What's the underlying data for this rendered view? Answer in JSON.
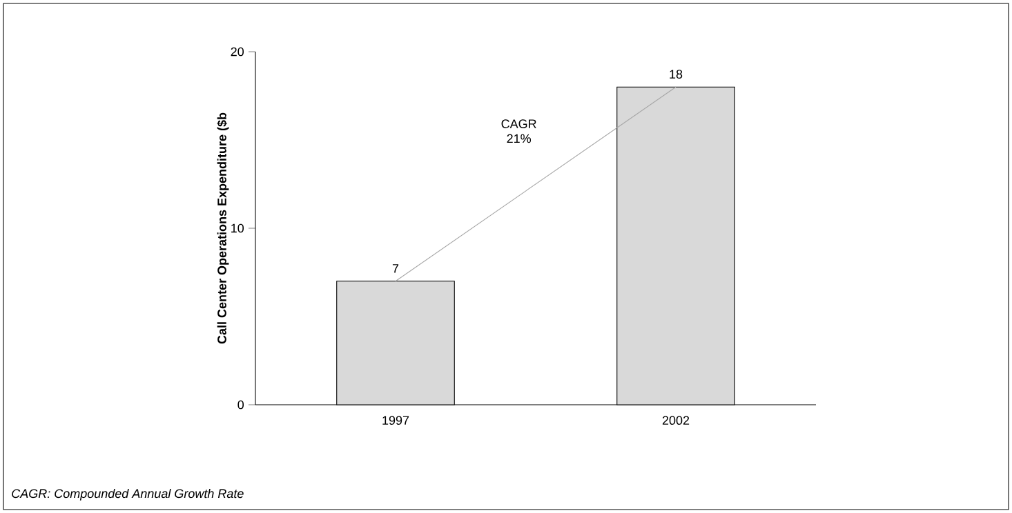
{
  "chart_data": {
    "type": "bar",
    "ylabel": "Call Center Operations Expenditure ($b",
    "categories": [
      "1997",
      "2002"
    ],
    "series": [
      {
        "color": "#d9d9d9",
        "values": [
          7,
          18
        ],
        "value_labels": [
          "7",
          "18"
        ]
      },
      {
        "type": "line",
        "color": "#a6a6a6",
        "values": [
          7,
          18
        ]
      }
    ],
    "ylim": [
      0,
      20
    ],
    "yticks": [
      0,
      10,
      20
    ],
    "grid": false,
    "marker": "none",
    "annotations": [
      "CAGR 21%",
      "CAGR: Compounded Annual Growth Rate"
    ]
  }
}
